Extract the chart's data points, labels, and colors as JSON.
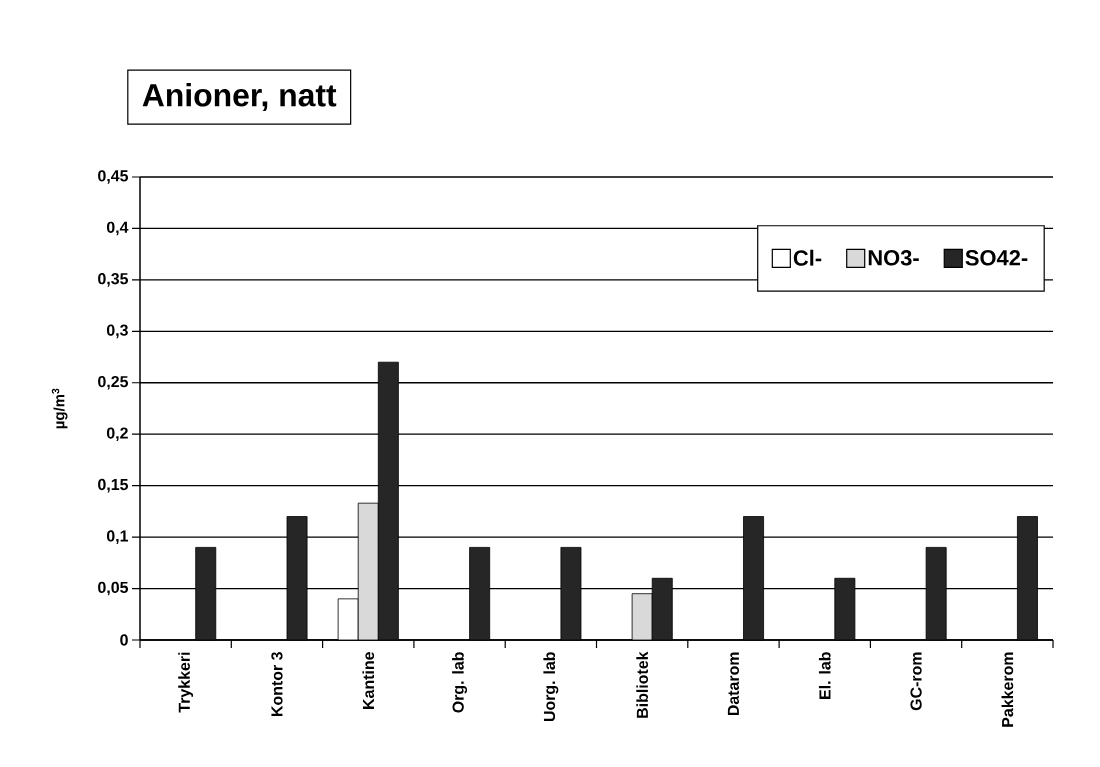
{
  "chart_data": {
    "type": "bar",
    "title": "Anioner, natt",
    "ylabel": "µg/m$^{3}$",
    "categories": [
      "Trykkeri",
      "Kontor 3",
      "Kantine",
      "Org. lab",
      "Uorg. lab",
      "Bibliotek",
      "Datarom",
      "El. lab",
      "GC-rom",
      "Pakkerom"
    ],
    "series": [
      {
        "name": "Cl-",
        "color": "#ffffff",
        "values": [
          null,
          null,
          0.04,
          null,
          null,
          null,
          null,
          null,
          null,
          null
        ]
      },
      {
        "name": "NO3-",
        "color": "#d9d9d9",
        "values": [
          null,
          null,
          0.133,
          null,
          null,
          0.045,
          null,
          null,
          null,
          null
        ]
      },
      {
        "name": "SO42-",
        "color": "#262626",
        "values": [
          0.09,
          0.12,
          0.27,
          0.09,
          0.09,
          0.06,
          0.12,
          0.06,
          0.09,
          0.12
        ]
      }
    ],
    "ylim": [
      0,
      0.45
    ],
    "yticks": [
      0,
      {
        "value": 0.05,
        "label": "0,05"
      },
      {
        "value": 0.1,
        "label": "0,1"
      },
      {
        "value": 0.15,
        "label": "0,15"
      },
      {
        "value": 0.2,
        "label": "0,2"
      },
      {
        "value": 0.25,
        "label": "0,25"
      },
      {
        "value": 0.3,
        "label": "0,3"
      },
      {
        "value": 0.35,
        "label": "0,35"
      },
      {
        "value": 0.4,
        "label": "0,4"
      },
      {
        "value": 0.45,
        "label": "0,45"
      }
    ],
    "grid": "y",
    "legend": "top right"
  }
}
